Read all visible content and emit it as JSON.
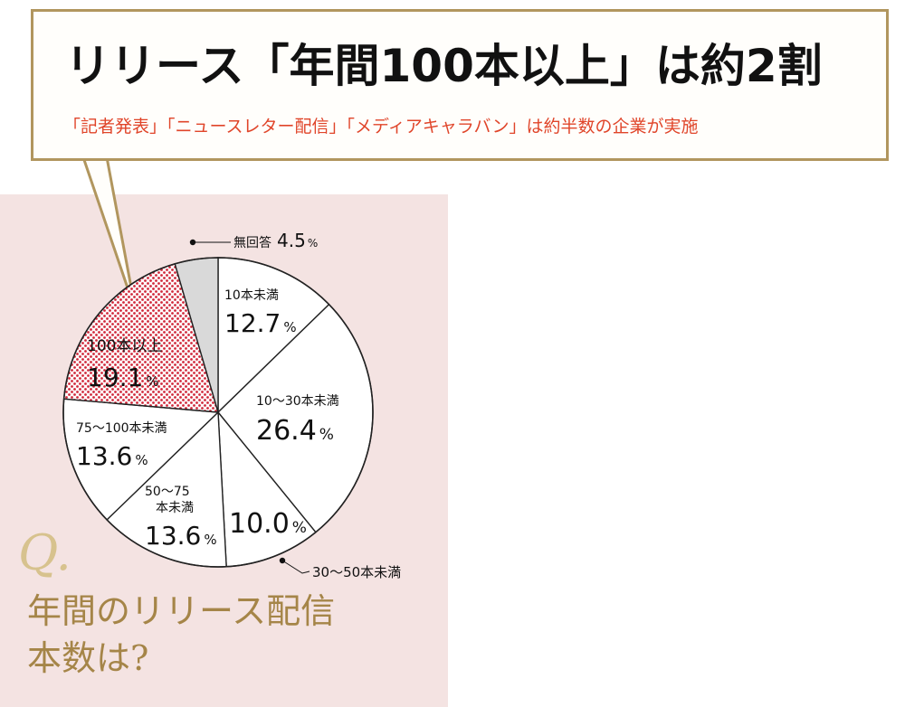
{
  "header": {
    "title": "リリース「年間100本以上」は約2割",
    "subtitle": "「記者発表」「ニュースレター配信」「メディアキャラバン」は約半数の企業が実施"
  },
  "question": {
    "mark": "Q.",
    "line1": "年間のリリース配信",
    "line2": "本数は?"
  },
  "colors": {
    "panel": "#f4e3e2",
    "callout_border": "#b1965e",
    "accent": "#e0452a",
    "gold": "#a58548",
    "no_answer_fill": "#d9d9d9",
    "dot_fill": "#d0283a"
  },
  "chart_data": {
    "type": "pie",
    "start": "12 o'clock",
    "direction": "clockwise",
    "unit": "%",
    "slices": [
      {
        "label": "10本未満",
        "value": 12.7,
        "fill": "white"
      },
      {
        "label": "10〜30本未満",
        "value": 26.4,
        "fill": "white"
      },
      {
        "label": "30〜50本未満",
        "value": 10.0,
        "fill": "white"
      },
      {
        "label": "50〜75\n本未満",
        "value": 13.6,
        "fill": "white"
      },
      {
        "label": "75〜100本未満",
        "value": 13.6,
        "fill": "white"
      },
      {
        "label": "100本以上",
        "value": 19.1,
        "fill": "dotted-red"
      },
      {
        "label": "無回答",
        "value": 4.5,
        "fill": "gray"
      }
    ]
  }
}
